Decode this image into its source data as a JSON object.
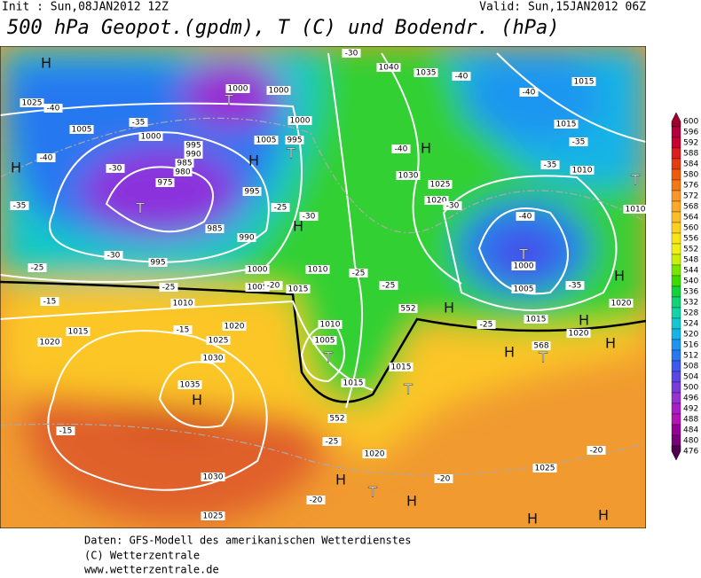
{
  "header": {
    "init": "Init : Sun,08JAN2012 12Z",
    "valid": "Valid: Sun,15JAN2012 06Z",
    "title": "500 hPa Geopot.(gpdm), T (C) und Bodendr. (hPa)"
  },
  "colorbar": {
    "values": [
      600,
      596,
      592,
      588,
      584,
      580,
      576,
      572,
      568,
      564,
      560,
      556,
      552,
      548,
      544,
      540,
      536,
      532,
      528,
      524,
      520,
      516,
      512,
      508,
      504,
      500,
      496,
      492,
      488,
      484,
      480,
      476
    ],
    "colors": [
      "#a00030",
      "#b4003c",
      "#c80032",
      "#dc1e1e",
      "#e63c14",
      "#f05a0a",
      "#f47814",
      "#f89628",
      "#faaa28",
      "#fcbe28",
      "#fcd21e",
      "#f8e614",
      "#f0f014",
      "#c8f00a",
      "#78e600",
      "#3cdc00",
      "#14d23c",
      "#14d278",
      "#14d2aa",
      "#14c8d2",
      "#14b4e6",
      "#1e96f0",
      "#2878f0",
      "#3c5af0",
      "#5a46e6",
      "#783cdc",
      "#9632d2",
      "#aa1ec8",
      "#b414b4",
      "#960096",
      "#780078",
      "#500050"
    ]
  },
  "map_labels": [
    "H",
    "H",
    "T",
    "T",
    "H",
    "T",
    "H",
    "T",
    "T",
    "H",
    "H",
    "T",
    "H",
    "T",
    "H",
    "H",
    "T",
    "H",
    "H",
    "H",
    "T",
    "H",
    "H",
    "H",
    "1025",
    "1005",
    "1000",
    "995",
    "990",
    "985",
    "980",
    "975",
    "985",
    "990",
    "995",
    "1000",
    "1005",
    "1010",
    "1015",
    "1010",
    "1020",
    "1015",
    "1025",
    "1020",
    "1030",
    "1035",
    "1030",
    "1025",
    "1020",
    "1015",
    "1015",
    "1005",
    "1010",
    "1040",
    "1035",
    "1015",
    "1015",
    "1010",
    "1030",
    "1025",
    "1020",
    "1010",
    "1000",
    "1005",
    "1015",
    "1020",
    "1020",
    "1025",
    "1000",
    "1000",
    "1005",
    "995",
    "1000",
    "995",
    "-40",
    "-35",
    "-30",
    "-40",
    "-35",
    "-30",
    "-25",
    "-25",
    "-20",
    "-15",
    "-15",
    "-15",
    "-25",
    "-20",
    "-20",
    "-20",
    "-30",
    "-40",
    "-40",
    "-35",
    "-35",
    "-40",
    "-35",
    "-25",
    "-25",
    "-25",
    "-30",
    "-25",
    "-40",
    "-30",
    "552",
    "552",
    "568"
  ],
  "footer": [
    "Daten: GFS-Modell des amerikanischen Wetterdienstes",
    "(C) Wetterzentrale",
    "www.wetterzentrale.de"
  ]
}
